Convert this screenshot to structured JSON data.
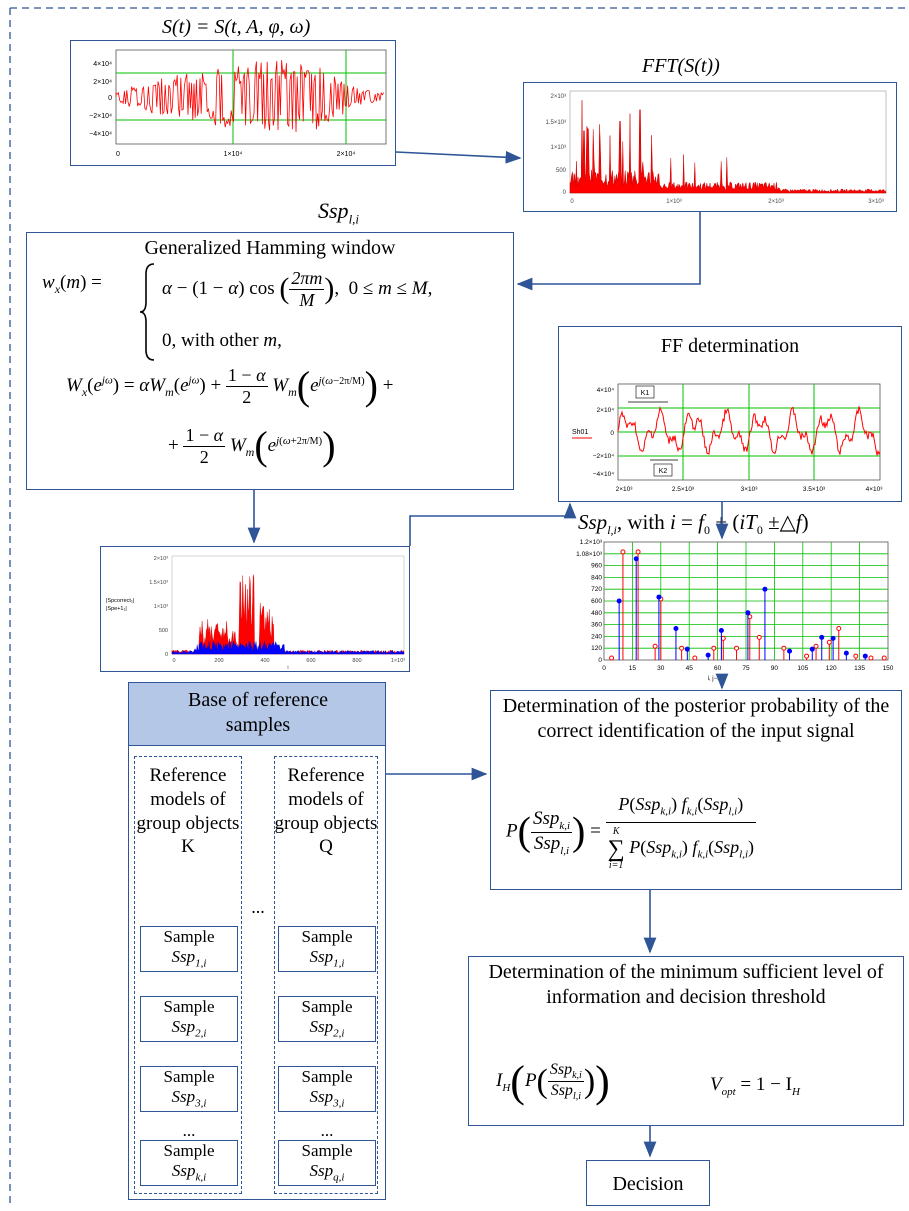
{
  "signal": {
    "title": "S(t) = S(t, A, φ, ω)",
    "yticks": [
      "4×10⁴",
      "2×10⁴",
      "0",
      "−2×10⁴",
      "−4×10⁴"
    ],
    "xticks": [
      "0",
      "1×10⁴",
      "2×10⁴"
    ]
  },
  "fft": {
    "title": "FFT(S(t))",
    "yticks": [
      "2×10³",
      "1.5×10³",
      "1×10³",
      "500",
      "0"
    ],
    "xticks": [
      "0",
      "1×10³",
      "2×10³",
      "3×10³"
    ]
  },
  "ssp_label": "Ssp",
  "ssp_sub": "l,i",
  "hamming": {
    "title": "Generalized Hamming window",
    "line1_a": "w",
    "line1_case1": "α − (1 − α) cos",
    "line1_frac_n": "2πm",
    "line1_frac_d": "M",
    "line1_cond": ",  0 ≤ m ≤ M,",
    "line1_case2": "0, with other m,",
    "line2": "W",
    "line3_plus": "+",
    "frac_n": "1 − α",
    "frac_d": "2"
  },
  "ff": {
    "title": "FF determination",
    "legend": "Sh01",
    "k1": "K1",
    "k2": "K2",
    "yticks": [
      "4×10⁴",
      "2×10⁴",
      "0",
      "−2×10⁴",
      "−4×10⁴"
    ],
    "xticks": [
      "2×10³",
      "2.5×10³",
      "3×10³",
      "3.5×10³",
      "4×10³"
    ]
  },
  "spec2": {
    "legend1": "|Spcorrect₁|",
    "legend2": "|Spe+1₁|",
    "yticks": [
      "2×10³",
      "1.5×10³",
      "1×10³",
      "500",
      "0"
    ],
    "xticks": [
      "0",
      "200",
      "400",
      "600",
      "800",
      "1×10³"
    ],
    "xlabel": "i"
  },
  "ssp_eq": {
    "text": "Ssp",
    "sub": "l,i",
    "rest": ", with i = f₀ + (iT₀ ±△f)"
  },
  "stem": {
    "yticks": [
      "1.2×10³",
      "1.08×10³",
      "960",
      "840",
      "720",
      "600",
      "480",
      "360",
      "240",
      "120",
      "0"
    ],
    "xticks": [
      "0",
      "15",
      "30",
      "45",
      "60",
      "75",
      "90",
      "105",
      "120",
      "135",
      "150"
    ],
    "xlabel": "i, j−1"
  },
  "base": {
    "title": "Base of reference samples",
    "colK": "Reference models of group objects K",
    "colQ": "Reference models of group objects Q",
    "dots": "...",
    "samples_k": [
      "1,i",
      "2,i",
      "3,i",
      "k,i"
    ],
    "samples_q": [
      "1,i",
      "2,i",
      "3,i",
      "q,i"
    ],
    "sample_word": "Sample",
    "ssp": "Ssp"
  },
  "posterior": {
    "title": "Determination of the posterior probability of the correct identification of the input signal",
    "sum_top": "K",
    "sum_bottom": "i=1"
  },
  "threshold": {
    "title": "Determination of the minimum sufficient level of information and decision threshold",
    "vopt": "V",
    "vopt_sub": "opt",
    "vopt_rest": " = 1 − I",
    "vopt_h": "H"
  },
  "decision": {
    "label": "Decision"
  },
  "colors": {
    "accent": "#2f5597",
    "signal_red": "#ff0000",
    "grid_green": "#00c000",
    "blue_fill": "#0000ff",
    "box_header": "#b4c7e7"
  }
}
